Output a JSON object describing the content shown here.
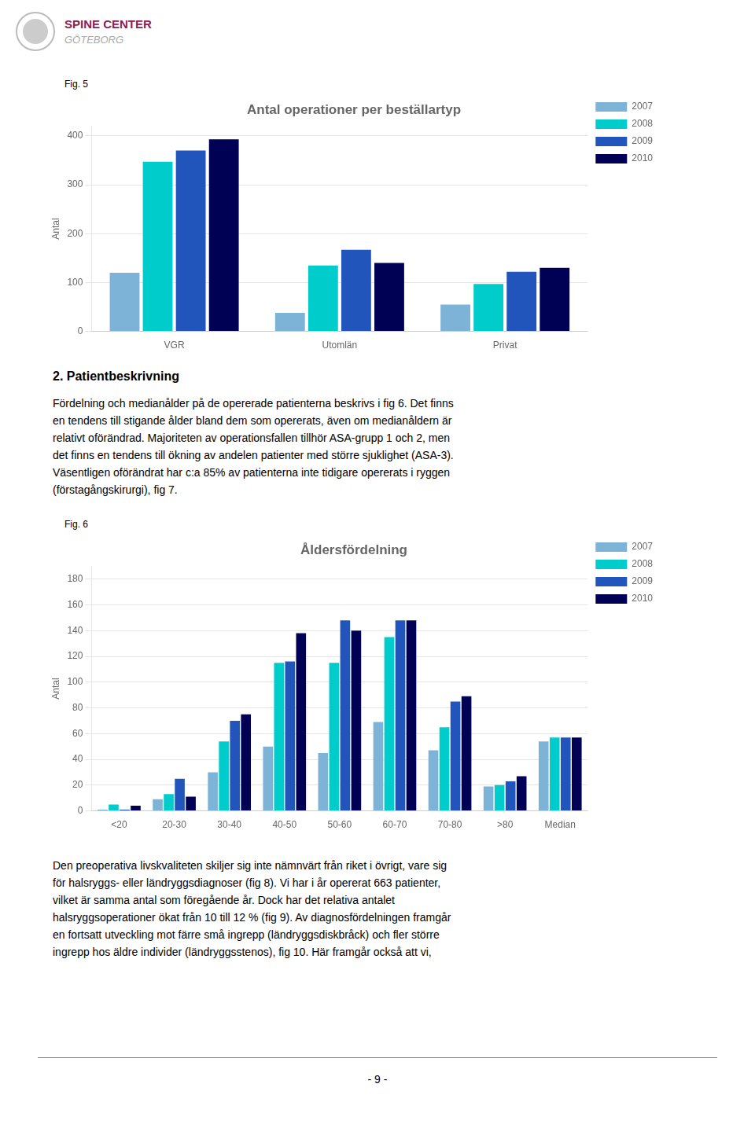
{
  "chart_data": [
    {
      "type": "bar",
      "title": "Antal operationer per beställartyp",
      "caption": "Fig. 5",
      "ylabel": "Antal",
      "categories": [
        "VGR",
        "Utomlän",
        "Privat"
      ],
      "series": [
        {
          "name": "2007",
          "color": "#7EB3D8",
          "values": [
            120,
            38,
            55
          ]
        },
        {
          "name": "2008",
          "color": "#00CCCC",
          "values": [
            347,
            135,
            97
          ]
        },
        {
          "name": "2009",
          "color": "#2255BB",
          "values": [
            370,
            167,
            122
          ]
        },
        {
          "name": "2010",
          "color": "#000055",
          "values": [
            393,
            140,
            130
          ]
        }
      ],
      "ylim": [
        0,
        420
      ],
      "yticks": [
        0,
        100,
        200,
        300,
        400
      ],
      "grid": true,
      "legend": "right"
    },
    {
      "type": "bar",
      "title": "Åldersfördelning",
      "caption": "Fig. 6",
      "ylabel": "Antal",
      "categories": [
        "<20",
        "20-30",
        "30-40",
        "40-50",
        "50-60",
        "60-70",
        "70-80",
        ">80",
        "Median"
      ],
      "series": [
        {
          "name": "2007",
          "color": "#7EB3D8",
          "values": [
            1,
            9,
            30,
            50,
            45,
            69,
            47,
            19,
            54
          ]
        },
        {
          "name": "2008",
          "color": "#00CCCC",
          "values": [
            5,
            13,
            54,
            115,
            115,
            135,
            65,
            20,
            57
          ]
        },
        {
          "name": "2009",
          "color": "#2255BB",
          "values": [
            1,
            25,
            70,
            116,
            148,
            148,
            85,
            23,
            57
          ]
        },
        {
          "name": "2010",
          "color": "#000055",
          "values": [
            4,
            11,
            75,
            138,
            140,
            148,
            89,
            27,
            57
          ]
        }
      ],
      "ylim": [
        0,
        190
      ],
      "yticks": [
        0,
        20,
        40,
        60,
        80,
        100,
        120,
        140,
        160,
        180
      ],
      "grid": true,
      "legend": "right"
    }
  ],
  "page": {
    "logo": [
      "SPINE CENTER",
      "GÖTEBORG"
    ],
    "section_title": "2.  Patientbeskrivning",
    "paragraphs": [
      [
        "Fördelning och medianålder på de opererade patienterna beskrivs i fig 6. Det finns",
        "en tendens till stigande ålder bland dem som opererats, även om medianåldern är",
        "relativt oförändrad. Majoriteten av operationsfallen tillhör ASA-grupp 1 och 2, men",
        "det finns en tendens till ökning av andelen patienter med större sjuklighet (ASA-3).",
        "Väsentligen oförändrat har c:a 85% av patienterna inte tidigare opererats i ryggen",
        "(förstagångskirurgi), fig 7."
      ],
      [
        "Den preoperativa livskvaliteten skiljer sig inte nämnvärt från riket i övrigt, vare sig",
        "för halsryggs- eller ländryggsdiagnoser (fig 8). Vi har i år opererat 663 patienter,",
        "vilket är samma antal som föregående år. Dock har det relativa antalet",
        "halsryggsoperationer ökat från 10 till 12 % (fig 9). Av diagnosfördelningen framgår",
        "en fortsatt utveckling mot färre små ingrepp (ländryggsdiskbråck) och fler större",
        "ingrepp hos äldre individer (ländryggsstenos), fig 10. Här framgår också att vi,"
      ]
    ],
    "page_number": "- 9 -"
  }
}
